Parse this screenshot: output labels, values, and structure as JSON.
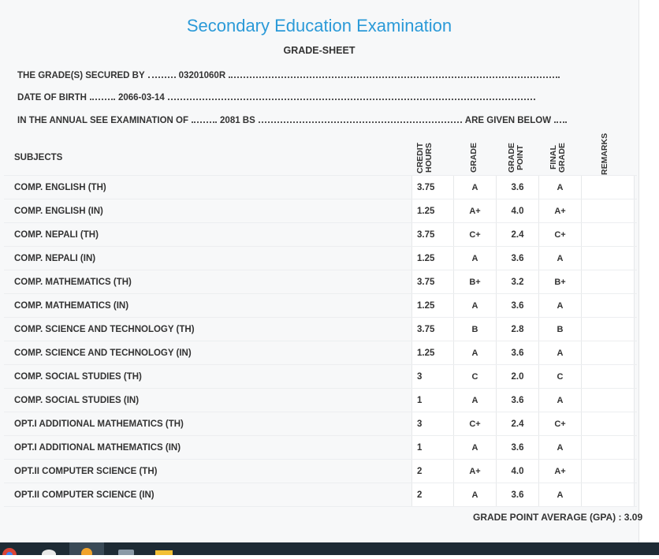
{
  "header": {
    "title": "Secondary Education Examination",
    "subtitle": "GRADE-SHEET"
  },
  "info": [
    {
      "label": "THE GRADE(S) SECURED BY",
      "value": "03201060R"
    },
    {
      "label": "DATE OF BIRTH",
      "value": "2066-03-14"
    },
    {
      "label": "IN THE ANNUAL SEE EXAMINATION OF",
      "value": "2081 BS",
      "suffix": "ARE GIVEN BELOW"
    }
  ],
  "table": {
    "headers": [
      "SUBJECTS",
      "CREDIT HOURS",
      "GRADE",
      "GRADE POINT",
      "FINAL GRADE",
      "REMARKS"
    ],
    "rows": [
      [
        "COMP. ENGLISH (TH)",
        "3.75",
        "A",
        "3.6",
        "A"
      ],
      [
        "COMP. ENGLISH (IN)",
        "1.25",
        "A+",
        "4.0",
        "A+"
      ],
      [
        "COMP. NEPALI (TH)",
        "3.75",
        "C+",
        "2.4",
        "C+"
      ],
      [
        "COMP. NEPALI (IN)",
        "1.25",
        "A",
        "3.6",
        "A"
      ],
      [
        "COMP. MATHEMATICS (TH)",
        "3.75",
        "B+",
        "3.2",
        "B+"
      ],
      [
        "COMP. MATHEMATICS (IN)",
        "1.25",
        "A",
        "3.6",
        "A"
      ],
      [
        "COMP. SCIENCE AND TECHNOLOGY (TH)",
        "3.75",
        "B",
        "2.8",
        "B"
      ],
      [
        "COMP. SCIENCE AND TECHNOLOGY (IN)",
        "1.25",
        "A",
        "3.6",
        "A"
      ],
      [
        "COMP. SOCIAL STUDIES (TH)",
        "3",
        "C",
        "2.0",
        "C"
      ],
      [
        "COMP. SOCIAL STUDIES (IN)",
        "1",
        "A",
        "3.6",
        "A"
      ],
      [
        "OPT.I ADDITIONAL MATHEMATICS (TH)",
        "3",
        "C+",
        "2.4",
        "C+"
      ],
      [
        "OPT.I ADDITIONAL MATHEMATICS (IN)",
        "1",
        "A",
        "3.6",
        "A"
      ],
      [
        "OPT.II COMPUTER SCIENCE (TH)",
        "2",
        "A+",
        "4.0",
        "A+"
      ],
      [
        "OPT.II COMPUTER SCIENCE (IN)",
        "2",
        "A",
        "3.6",
        "A"
      ]
    ]
  },
  "gpa": {
    "label": "GRADE POINT AVERAGE (GPA) :",
    "value": "3.09"
  }
}
